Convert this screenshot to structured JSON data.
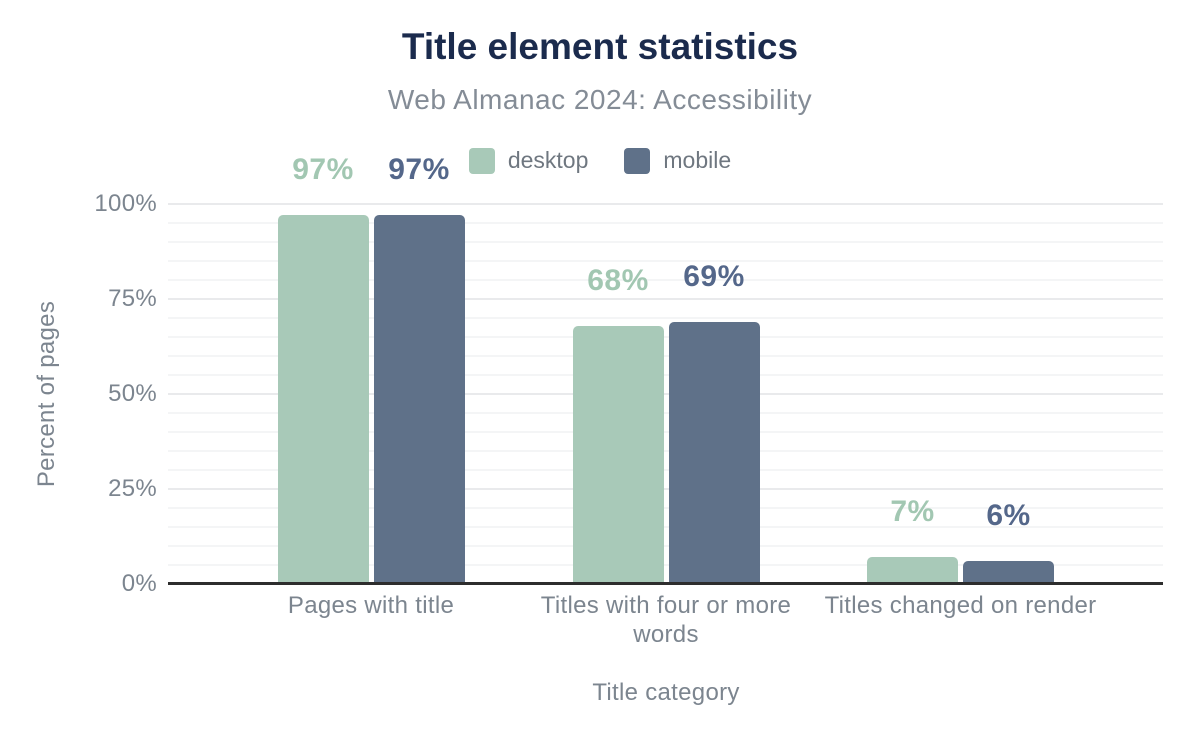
{
  "chart_data": {
    "type": "bar",
    "title": "Title element statistics",
    "subtitle": "Web Almanac 2024: Accessibility",
    "xlabel": "Title category",
    "ylabel": "Percent of pages",
    "categories": [
      "Pages with title",
      "Titles with four or more words",
      "Titles changed on render"
    ],
    "series": [
      {
        "name": "desktop",
        "color": "#a8c9b8",
        "label_color": "#a2c7b2",
        "values": [
          97,
          68,
          7
        ]
      },
      {
        "name": "mobile",
        "color": "#5f7189",
        "label_color": "#54678a",
        "values": [
          97,
          69,
          6
        ]
      }
    ],
    "value_suffix": "%",
    "ylim": [
      0,
      100
    ],
    "yticks": [
      0,
      25,
      50,
      75,
      100
    ],
    "ytick_labels": [
      "0%",
      "25%",
      "50%",
      "75%",
      "100%"
    ],
    "major_grid_step": 25,
    "minor_grid_step": 5,
    "grid": true,
    "legend_position": "top"
  },
  "colors": {
    "background": "#ffffff",
    "title": "#1b2b4d",
    "subtitle": "#848c96",
    "axis_text": "#7c858f",
    "legend_text": "#6f7780",
    "axis_line": "#2d2d2d",
    "major_grid": "#e9eaec",
    "minor_grid": "#f4f5f6"
  }
}
